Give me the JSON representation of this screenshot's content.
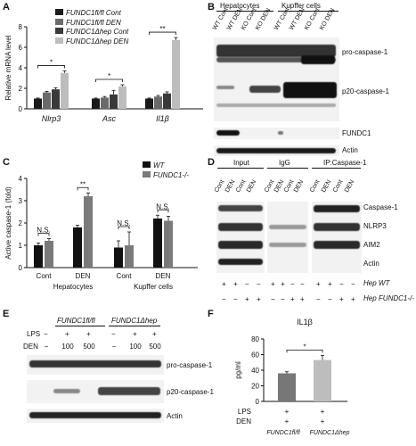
{
  "panels": {
    "A": "A",
    "B": "B",
    "C": "C",
    "D": "D",
    "E": "E",
    "F": "F"
  },
  "panelA": {
    "ylabel": "Relative mRNA level",
    "legend": [
      "FUNDC1fl/fl Cont",
      "FUNDC1fl/fl DEN",
      "FUNDC1Δhep Cont",
      "FUNDC1Δhep DEN"
    ],
    "legend_colors": [
      "#1a1a1a",
      "#6a6a6a",
      "#3a3a3a",
      "#bdbdbd"
    ],
    "sig": [
      "*",
      "*",
      "**"
    ]
  },
  "panelB": {
    "groups": [
      "Hepatocytes",
      "Kupffer cells"
    ],
    "lanes": [
      "WT Cont",
      "WT DEN",
      "KO Cont",
      "KO DEN",
      "WT Cont",
      "WT DEN",
      "KO Cont",
      "KO DEN"
    ],
    "labels": [
      "pro-caspase-1",
      "p20-caspase-1",
      "FUNDC1",
      "Actin"
    ]
  },
  "panelC": {
    "ylabel": "Active caspase-1 (fold)",
    "legend": [
      "WT",
      "FUNDC1-/-"
    ],
    "legend_colors": [
      "#111111",
      "#7a7a7a"
    ],
    "groups": [
      "Hepatocytes",
      "Kupffer cells"
    ],
    "sig": [
      "N.S.",
      "**",
      "N.S.",
      "N.S."
    ]
  },
  "panelD": {
    "groups": [
      "Input",
      "IgG",
      "IP:Caspase-1"
    ],
    "lanes": [
      "Cont",
      "DEN",
      "Cont",
      "DEN"
    ],
    "labels": [
      "Caspase-1",
      "NLRP3",
      "AIM2",
      "Actin"
    ],
    "row1_label": "Hep WT",
    "row2_label": "Hep FUNDC1-/-",
    "row1_signs": [
      "+",
      "+",
      "−",
      "−",
      "+",
      "+",
      "−",
      "−",
      "+",
      "+",
      "−",
      "−"
    ],
    "row2_signs": [
      "−",
      "−",
      "+",
      "+",
      "−",
      "−",
      "+",
      "+",
      "−",
      "−",
      "+",
      "+"
    ]
  },
  "panelE": {
    "groups": [
      "FUNDC1fl/fl",
      "FUNDC1Δhep"
    ],
    "lps_label": "LPS",
    "den_label": "DEN",
    "lps_signs": [
      "−",
      "+",
      "+",
      "−",
      "+",
      "+"
    ],
    "den_values": [
      "−",
      "100",
      "500",
      "−",
      "100",
      "500"
    ],
    "labels": [
      "pro-caspase-1",
      "p20-caspase-1",
      "Actin"
    ]
  },
  "panelF": {
    "title": "IL1β",
    "ylabel": "pg/ml",
    "lps_label": "LPS",
    "den_label": "DEN",
    "lps_signs": [
      "+",
      "+"
    ],
    "den_signs": [
      "+",
      "+"
    ],
    "groups": [
      "FUNDC1fl/fl",
      "FUNDC1Δhep"
    ],
    "sig": "*"
  },
  "chart_data": [
    {
      "type": "bar",
      "panel": "A",
      "categories": [
        "Nlrp3",
        "Asc",
        "Il1β"
      ],
      "series": [
        {
          "name": "FUNDC1fl/fl Cont",
          "values": [
            1.0,
            1.0,
            1.0
          ]
        },
        {
          "name": "FUNDC1fl/fl DEN",
          "values": [
            1.6,
            1.1,
            1.2
          ]
        },
        {
          "name": "FUNDC1Δhep Cont",
          "values": [
            1.9,
            1.4,
            1.5
          ]
        },
        {
          "name": "FUNDC1Δhep DEN",
          "values": [
            3.5,
            2.2,
            6.7
          ]
        }
      ],
      "errors": [
        [
          0.05,
          0.05,
          0.05
        ],
        [
          0.1,
          0.1,
          0.1
        ],
        [
          0.15,
          0.4,
          0.15
        ],
        [
          0.2,
          0.15,
          0.25
        ]
      ],
      "ylabel": "Relative mRNA level",
      "ylim": [
        0,
        8
      ],
      "yticks": [
        0,
        2,
        4,
        6,
        8
      ]
    },
    {
      "type": "bar",
      "panel": "C",
      "categories": [
        "Cont",
        "DEN",
        "Cont",
        "DEN"
      ],
      "series": [
        {
          "name": "WT",
          "values": [
            1.0,
            1.8,
            0.9,
            2.2
          ]
        },
        {
          "name": "FUNDC1-/-",
          "values": [
            1.2,
            3.2,
            1.0,
            2.1
          ]
        }
      ],
      "errors": [
        [
          0.1,
          0.1,
          0.3,
          0.15
        ],
        [
          0.1,
          0.15,
          0.6,
          0.2
        ]
      ],
      "ylabel": "Active caspase-1 (fold)",
      "ylim": [
        0,
        4
      ],
      "yticks": [
        0,
        1,
        2,
        3,
        4
      ]
    },
    {
      "type": "bar",
      "panel": "F",
      "categories": [
        "FUNDC1fl/fl",
        "FUNDC1Δhep"
      ],
      "values": [
        36,
        53
      ],
      "errors": [
        2,
        6
      ],
      "colors": [
        "#777777",
        "#bdbdbd"
      ],
      "title": "IL1β",
      "ylabel": "pg/ml",
      "ylim": [
        0,
        80
      ],
      "yticks": [
        0,
        20,
        40,
        60,
        80
      ]
    }
  ]
}
